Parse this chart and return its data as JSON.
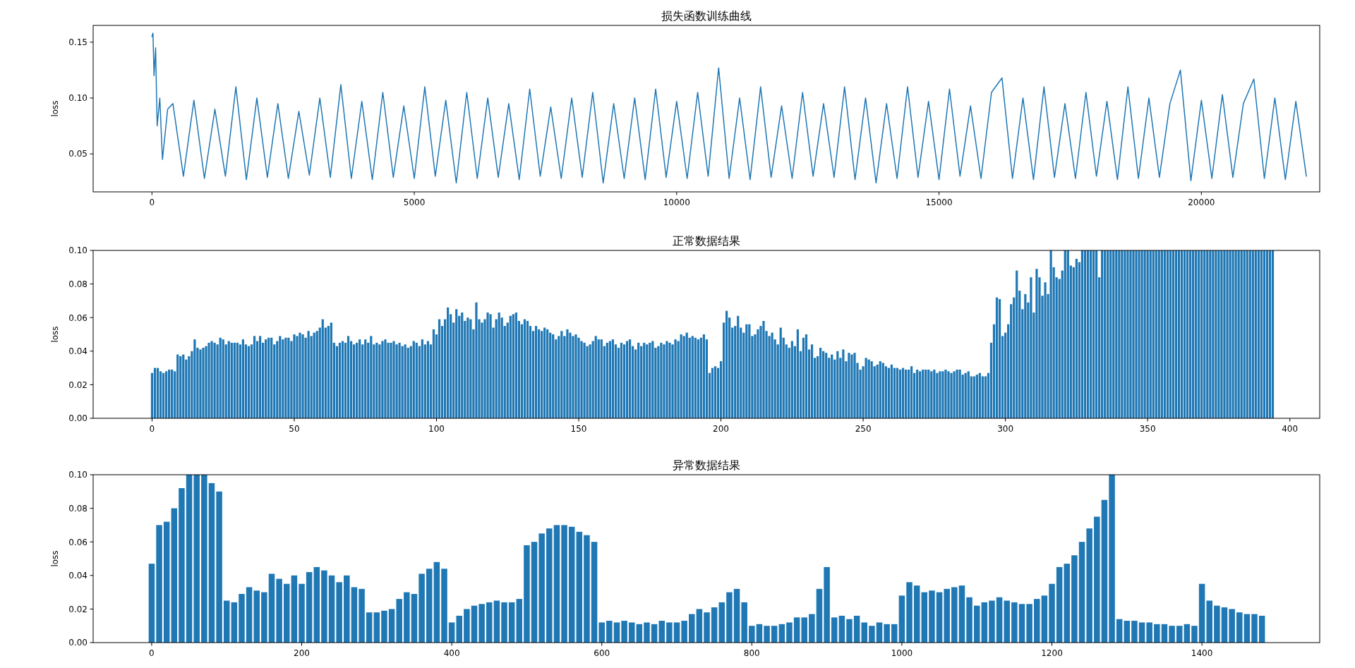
{
  "chart_data": [
    {
      "type": "line",
      "title": "损失函数训练曲线",
      "ylabel": "loss",
      "color": "#1f77b4",
      "xlim": [
        -1120,
        22255
      ],
      "ylim": [
        0.016,
        0.165
      ],
      "xticks": [
        0,
        5000,
        10000,
        15000,
        20000
      ],
      "yticks": [
        {
          "value": 0.05,
          "label": "0.05"
        },
        {
          "value": 0.1,
          "label": "0.10"
        },
        {
          "value": 0.15,
          "label": "0.15"
        }
      ],
      "x": [
        0,
        20,
        40,
        70,
        100,
        150,
        200,
        300,
        400,
        600,
        800,
        1000,
        1200,
        1400,
        1600,
        1800,
        2000,
        2200,
        2400,
        2600,
        2800,
        3000,
        3200,
        3400,
        3600,
        3800,
        4000,
        4200,
        4400,
        4600,
        4800,
        5000,
        5200,
        5400,
        5600,
        5800,
        6000,
        6200,
        6400,
        6600,
        6800,
        7000,
        7200,
        7400,
        7600,
        7800,
        8000,
        8200,
        8400,
        8600,
        8800,
        9000,
        9200,
        9400,
        9600,
        9800,
        10000,
        10200,
        10400,
        10600,
        10800,
        11000,
        11200,
        11400,
        11600,
        11800,
        12000,
        12200,
        12400,
        12600,
        12800,
        13000,
        13200,
        13400,
        13600,
        13800,
        14000,
        14200,
        14400,
        14600,
        14800,
        15000,
        15200,
        15400,
        15600,
        15800,
        16000,
        16200,
        16400,
        16600,
        16800,
        17000,
        17200,
        17400,
        17600,
        17800,
        18000,
        18200,
        18400,
        18600,
        18800,
        19000,
        19200,
        19400,
        19600,
        19800,
        20000,
        20200,
        20400,
        20600,
        20800,
        21000,
        21200,
        21400,
        21600,
        21800,
        22000
      ],
      "values": [
        0.155,
        0.158,
        0.12,
        0.145,
        0.075,
        0.1,
        0.045,
        0.09,
        0.095,
        0.03,
        0.098,
        0.028,
        0.09,
        0.03,
        0.11,
        0.027,
        0.1,
        0.029,
        0.095,
        0.028,
        0.088,
        0.031,
        0.1,
        0.029,
        0.112,
        0.028,
        0.097,
        0.027,
        0.105,
        0.029,
        0.093,
        0.028,
        0.11,
        0.03,
        0.098,
        0.024,
        0.105,
        0.028,
        0.1,
        0.029,
        0.095,
        0.027,
        0.108,
        0.03,
        0.092,
        0.028,
        0.1,
        0.029,
        0.105,
        0.024,
        0.095,
        0.028,
        0.1,
        0.027,
        0.108,
        0.029,
        0.097,
        0.028,
        0.105,
        0.03,
        0.127,
        0.028,
        0.1,
        0.027,
        0.11,
        0.029,
        0.093,
        0.028,
        0.105,
        0.03,
        0.095,
        0.029,
        0.11,
        0.027,
        0.1,
        0.024,
        0.095,
        0.028,
        0.11,
        0.029,
        0.097,
        0.027,
        0.108,
        0.03,
        0.093,
        0.028,
        0.105,
        0.118,
        0.028,
        0.1,
        0.027,
        0.11,
        0.029,
        0.095,
        0.028,
        0.105,
        0.03,
        0.097,
        0.027,
        0.11,
        0.028,
        0.1,
        0.029,
        0.095,
        0.125,
        0.026,
        0.098,
        0.028,
        0.103,
        0.029,
        0.095,
        0.117,
        0.028,
        0.1,
        0.027,
        0.097,
        0.03
      ]
    },
    {
      "type": "bar",
      "title": "正常数据结果",
      "ylabel": "loss",
      "color": "#1f77b4",
      "xlim": [
        -20.7,
        410.5
      ],
      "ylim": [
        0,
        0.1
      ],
      "xticks": [
        0,
        50,
        100,
        150,
        200,
        250,
        300,
        350,
        400
      ],
      "yticks": [
        {
          "value": 0,
          "label": "0.00"
        },
        {
          "value": 0.02,
          "label": "0.02"
        },
        {
          "value": 0.04,
          "label": "0.04"
        },
        {
          "value": 0.06,
          "label": "0.06"
        },
        {
          "value": 0.08,
          "label": "0.08"
        },
        {
          "value": 0.1,
          "label": "0.10"
        }
      ],
      "x": [
        0,
        1,
        2,
        3,
        4,
        5,
        6,
        7,
        8,
        9,
        10,
        11,
        12,
        13,
        14,
        15,
        16,
        17,
        18,
        19,
        20,
        21,
        22,
        23,
        24,
        25,
        26,
        27,
        28,
        29,
        30,
        31,
        32,
        33,
        34,
        35,
        36,
        37,
        38,
        39,
        40,
        41,
        42,
        43,
        44,
        45,
        46,
        47,
        48,
        49,
        50,
        51,
        52,
        53,
        54,
        55,
        56,
        57,
        58,
        59,
        60,
        61,
        62,
        63,
        64,
        65,
        66,
        67,
        68,
        69,
        70,
        71,
        72,
        73,
        74,
        75,
        76,
        77,
        78,
        79,
        80,
        81,
        82,
        83,
        84,
        85,
        86,
        87,
        88,
        89,
        90,
        91,
        92,
        93,
        94,
        95,
        96,
        97,
        98,
        99,
        100,
        101,
        102,
        103,
        104,
        105,
        106,
        107,
        108,
        109,
        110,
        111,
        112,
        113,
        114,
        115,
        116,
        117,
        118,
        119,
        120,
        121,
        122,
        123,
        124,
        125,
        126,
        127,
        128,
        129,
        130,
        131,
        132,
        133,
        134,
        135,
        136,
        137,
        138,
        139,
        140,
        141,
        142,
        143,
        144,
        145,
        146,
        147,
        148,
        149,
        150,
        151,
        152,
        153,
        154,
        155,
        156,
        157,
        158,
        159,
        160,
        161,
        162,
        163,
        164,
        165,
        166,
        167,
        168,
        169,
        170,
        171,
        172,
        173,
        174,
        175,
        176,
        177,
        178,
        179,
        180,
        181,
        182,
        183,
        184,
        185,
        186,
        187,
        188,
        189,
        190,
        191,
        192,
        193,
        194,
        195,
        196,
        197,
        198,
        199,
        200,
        201,
        202,
        203,
        204,
        205,
        206,
        207,
        208,
        209,
        210,
        211,
        212,
        213,
        214,
        215,
        216,
        217,
        218,
        219,
        220,
        221,
        222,
        223,
        224,
        225,
        226,
        227,
        228,
        229,
        230,
        231,
        232,
        233,
        234,
        235,
        236,
        237,
        238,
        239,
        240,
        241,
        242,
        243,
        244,
        245,
        246,
        247,
        248,
        249,
        250,
        251,
        252,
        253,
        254,
        255,
        256,
        257,
        258,
        259,
        260,
        261,
        262,
        263,
        264,
        265,
        266,
        267,
        268,
        269,
        270,
        271,
        272,
        273,
        274,
        275,
        276,
        277,
        278,
        279,
        280,
        281,
        282,
        283,
        284,
        285,
        286,
        287,
        288,
        289,
        290,
        291,
        292,
        293,
        294,
        295,
        296,
        297,
        298,
        299,
        300,
        301,
        302,
        303,
        304,
        305,
        306,
        307,
        308,
        309,
        310,
        311,
        312,
        313,
        314,
        315,
        316,
        317,
        318,
        319,
        320,
        321,
        322,
        323,
        324,
        325,
        326,
        327,
        328,
        329,
        330,
        331,
        332,
        333,
        334,
        335,
        336,
        337,
        338,
        339,
        340,
        341,
        342,
        343,
        344,
        345,
        346,
        347,
        348,
        349,
        350,
        351,
        352,
        353,
        354,
        355,
        356,
        357,
        358,
        359,
        360,
        361,
        362,
        363,
        364,
        365,
        366,
        367,
        368,
        369,
        370,
        371,
        372,
        373,
        374,
        375,
        376,
        377,
        378,
        379,
        380,
        381,
        382,
        383,
        384,
        385,
        386,
        387,
        388,
        389,
        390,
        391,
        392,
        393,
        394
      ],
      "values": [
        0.027,
        0.03,
        0.03,
        0.028,
        0.027,
        0.028,
        0.029,
        0.029,
        0.028,
        0.038,
        0.037,
        0.038,
        0.035,
        0.037,
        0.04,
        0.047,
        0.042,
        0.041,
        0.042,
        0.043,
        0.045,
        0.046,
        0.045,
        0.044,
        0.048,
        0.047,
        0.044,
        0.046,
        0.045,
        0.045,
        0.045,
        0.044,
        0.047,
        0.044,
        0.043,
        0.044,
        0.049,
        0.046,
        0.049,
        0.045,
        0.047,
        0.048,
        0.048,
        0.044,
        0.046,
        0.049,
        0.047,
        0.048,
        0.048,
        0.046,
        0.05,
        0.049,
        0.051,
        0.05,
        0.048,
        0.052,
        0.049,
        0.051,
        0.052,
        0.054,
        0.059,
        0.054,
        0.055,
        0.057,
        0.045,
        0.043,
        0.045,
        0.046,
        0.045,
        0.049,
        0.046,
        0.044,
        0.045,
        0.047,
        0.044,
        0.047,
        0.045,
        0.049,
        0.044,
        0.045,
        0.044,
        0.046,
        0.047,
        0.045,
        0.045,
        0.046,
        0.044,
        0.045,
        0.043,
        0.044,
        0.042,
        0.043,
        0.046,
        0.045,
        0.043,
        0.047,
        0.044,
        0.046,
        0.044,
        0.053,
        0.05,
        0.059,
        0.055,
        0.059,
        0.066,
        0.062,
        0.057,
        0.065,
        0.061,
        0.063,
        0.058,
        0.06,
        0.059,
        0.053,
        0.069,
        0.059,
        0.057,
        0.059,
        0.063,
        0.062,
        0.054,
        0.059,
        0.063,
        0.06,
        0.055,
        0.057,
        0.061,
        0.062,
        0.063,
        0.058,
        0.056,
        0.059,
        0.058,
        0.055,
        0.052,
        0.055,
        0.053,
        0.052,
        0.054,
        0.053,
        0.051,
        0.05,
        0.047,
        0.049,
        0.052,
        0.049,
        0.053,
        0.051,
        0.049,
        0.05,
        0.048,
        0.046,
        0.045,
        0.043,
        0.044,
        0.046,
        0.049,
        0.047,
        0.047,
        0.043,
        0.045,
        0.046,
        0.047,
        0.044,
        0.042,
        0.045,
        0.044,
        0.046,
        0.047,
        0.043,
        0.041,
        0.045,
        0.043,
        0.045,
        0.044,
        0.045,
        0.046,
        0.042,
        0.043,
        0.045,
        0.044,
        0.046,
        0.045,
        0.044,
        0.047,
        0.046,
        0.05,
        0.049,
        0.051,
        0.048,
        0.049,
        0.048,
        0.047,
        0.048,
        0.05,
        0.047,
        0.027,
        0.03,
        0.031,
        0.03,
        0.034,
        0.057,
        0.064,
        0.06,
        0.054,
        0.055,
        0.061,
        0.054,
        0.051,
        0.056,
        0.056,
        0.049,
        0.05,
        0.053,
        0.055,
        0.058,
        0.052,
        0.049,
        0.051,
        0.047,
        0.044,
        0.054,
        0.048,
        0.044,
        0.042,
        0.046,
        0.043,
        0.053,
        0.04,
        0.048,
        0.05,
        0.041,
        0.044,
        0.036,
        0.037,
        0.042,
        0.04,
        0.039,
        0.036,
        0.038,
        0.035,
        0.04,
        0.036,
        0.041,
        0.034,
        0.039,
        0.038,
        0.039,
        0.033,
        0.029,
        0.031,
        0.036,
        0.035,
        0.034,
        0.031,
        0.032,
        0.034,
        0.033,
        0.031,
        0.03,
        0.032,
        0.03,
        0.03,
        0.029,
        0.03,
        0.029,
        0.029,
        0.031,
        0.027,
        0.029,
        0.028,
        0.029,
        0.029,
        0.029,
        0.028,
        0.029,
        0.027,
        0.028,
        0.028,
        0.029,
        0.028,
        0.027,
        0.028,
        0.029,
        0.029,
        0.026,
        0.027,
        0.028,
        0.025,
        0.025,
        0.026,
        0.027,
        0.025,
        0.025,
        0.027,
        0.045,
        0.056,
        0.072,
        0.071,
        0.049,
        0.051,
        0.056,
        0.068,
        0.072,
        0.088,
        0.076,
        0.065,
        0.074,
        0.069,
        0.084,
        0.063,
        0.089,
        0.084,
        0.073,
        0.081,
        0.074,
        0.1,
        0.09,
        0.084,
        0.083,
        0.088,
        0.1,
        0.1,
        0.091,
        0.09,
        0.095,
        0.093,
        0.1,
        0.1,
        0.1,
        0.1,
        0.1,
        0.1,
        0.084,
        0.1,
        0.1,
        0.1,
        0.1,
        0.1,
        0.1,
        0.1,
        0.1,
        0.1,
        0.1,
        0.1,
        0.1,
        0.1,
        0.1,
        0.1,
        0.1,
        0.1,
        0.1,
        0.1,
        0.1,
        0.1,
        0.1,
        0.1,
        0.1,
        0.1,
        0.1,
        0.1,
        0.1,
        0.1,
        0.1,
        0.1,
        0.1,
        0.1,
        0.1,
        0.1,
        0.1,
        0.1,
        0.1,
        0.1,
        0.1,
        0.1,
        0.1,
        0.1,
        0.1,
        0.1,
        0.1,
        0.1,
        0.1,
        0.1,
        0.1,
        0.1,
        0.1,
        0.1,
        0.1,
        0.1,
        0.1,
        0.1,
        0.1,
        0.1,
        0.1,
        0.1
      ]
    },
    {
      "type": "bar",
      "title": "异常数据结果",
      "ylabel": "loss",
      "color": "#1f77b4",
      "xlim": [
        -78,
        1557
      ],
      "ylim": [
        0,
        0.1
      ],
      "xticks": [
        0,
        200,
        400,
        600,
        800,
        1000,
        1200,
        1400
      ],
      "yticks": [
        {
          "value": 0,
          "label": "0.00"
        },
        {
          "value": 0.02,
          "label": "0.02"
        },
        {
          "value": 0.04,
          "label": "0.04"
        },
        {
          "value": 0.06,
          "label": "0.06"
        },
        {
          "value": 0.08,
          "label": "0.08"
        },
        {
          "value": 0.1,
          "label": "0.10"
        }
      ],
      "x": [
        0,
        10,
        20,
        30,
        40,
        50,
        60,
        70,
        80,
        90,
        100,
        110,
        120,
        130,
        140,
        150,
        160,
        170,
        180,
        190,
        200,
        210,
        220,
        230,
        240,
        250,
        260,
        270,
        280,
        290,
        300,
        310,
        320,
        330,
        340,
        350,
        360,
        370,
        380,
        390,
        400,
        410,
        420,
        430,
        440,
        450,
        460,
        470,
        480,
        490,
        500,
        510,
        520,
        530,
        540,
        550,
        560,
        570,
        580,
        590,
        600,
        610,
        620,
        630,
        640,
        650,
        660,
        670,
        680,
        690,
        700,
        710,
        720,
        730,
        740,
        750,
        760,
        770,
        780,
        790,
        800,
        810,
        820,
        830,
        840,
        850,
        860,
        870,
        880,
        890,
        900,
        910,
        920,
        930,
        940,
        950,
        960,
        970,
        980,
        990,
        1000,
        1010,
        1020,
        1030,
        1040,
        1050,
        1060,
        1070,
        1080,
        1090,
        1100,
        1110,
        1120,
        1130,
        1140,
        1150,
        1160,
        1170,
        1180,
        1190,
        1200,
        1210,
        1220,
        1230,
        1240,
        1250,
        1260,
        1270,
        1280,
        1290,
        1300,
        1310,
        1320,
        1330,
        1340,
        1350,
        1360,
        1370,
        1380,
        1390,
        1400,
        1410,
        1420,
        1430,
        1440,
        1450,
        1460,
        1470,
        1480
      ],
      "values": [
        0.047,
        0.07,
        0.072,
        0.08,
        0.092,
        0.1,
        0.1,
        0.1,
        0.095,
        0.09,
        0.025,
        0.024,
        0.029,
        0.033,
        0.031,
        0.03,
        0.041,
        0.038,
        0.035,
        0.04,
        0.035,
        0.042,
        0.045,
        0.043,
        0.04,
        0.036,
        0.04,
        0.033,
        0.032,
        0.018,
        0.018,
        0.019,
        0.02,
        0.026,
        0.03,
        0.029,
        0.041,
        0.044,
        0.048,
        0.044,
        0.012,
        0.016,
        0.02,
        0.022,
        0.023,
        0.024,
        0.025,
        0.024,
        0.024,
        0.026,
        0.058,
        0.06,
        0.065,
        0.068,
        0.07,
        0.07,
        0.069,
        0.066,
        0.064,
        0.06,
        0.012,
        0.013,
        0.012,
        0.013,
        0.012,
        0.011,
        0.012,
        0.011,
        0.013,
        0.012,
        0.012,
        0.013,
        0.017,
        0.02,
        0.018,
        0.021,
        0.024,
        0.03,
        0.032,
        0.024,
        0.01,
        0.011,
        0.01,
        0.01,
        0.011,
        0.012,
        0.015,
        0.015,
        0.017,
        0.032,
        0.045,
        0.015,
        0.016,
        0.014,
        0.016,
        0.012,
        0.01,
        0.012,
        0.011,
        0.011,
        0.028,
        0.036,
        0.034,
        0.03,
        0.031,
        0.03,
        0.032,
        0.033,
        0.034,
        0.027,
        0.022,
        0.024,
        0.025,
        0.027,
        0.025,
        0.024,
        0.023,
        0.023,
        0.026,
        0.028,
        0.035,
        0.045,
        0.047,
        0.052,
        0.06,
        0.068,
        0.075,
        0.085,
        0.1,
        0.014,
        0.013,
        0.013,
        0.012,
        0.012,
        0.011,
        0.011,
        0.01,
        0.01,
        0.011,
        0.01,
        0.035,
        0.025,
        0.022,
        0.021,
        0.02,
        0.018,
        0.017,
        0.017,
        0.016
      ]
    }
  ]
}
